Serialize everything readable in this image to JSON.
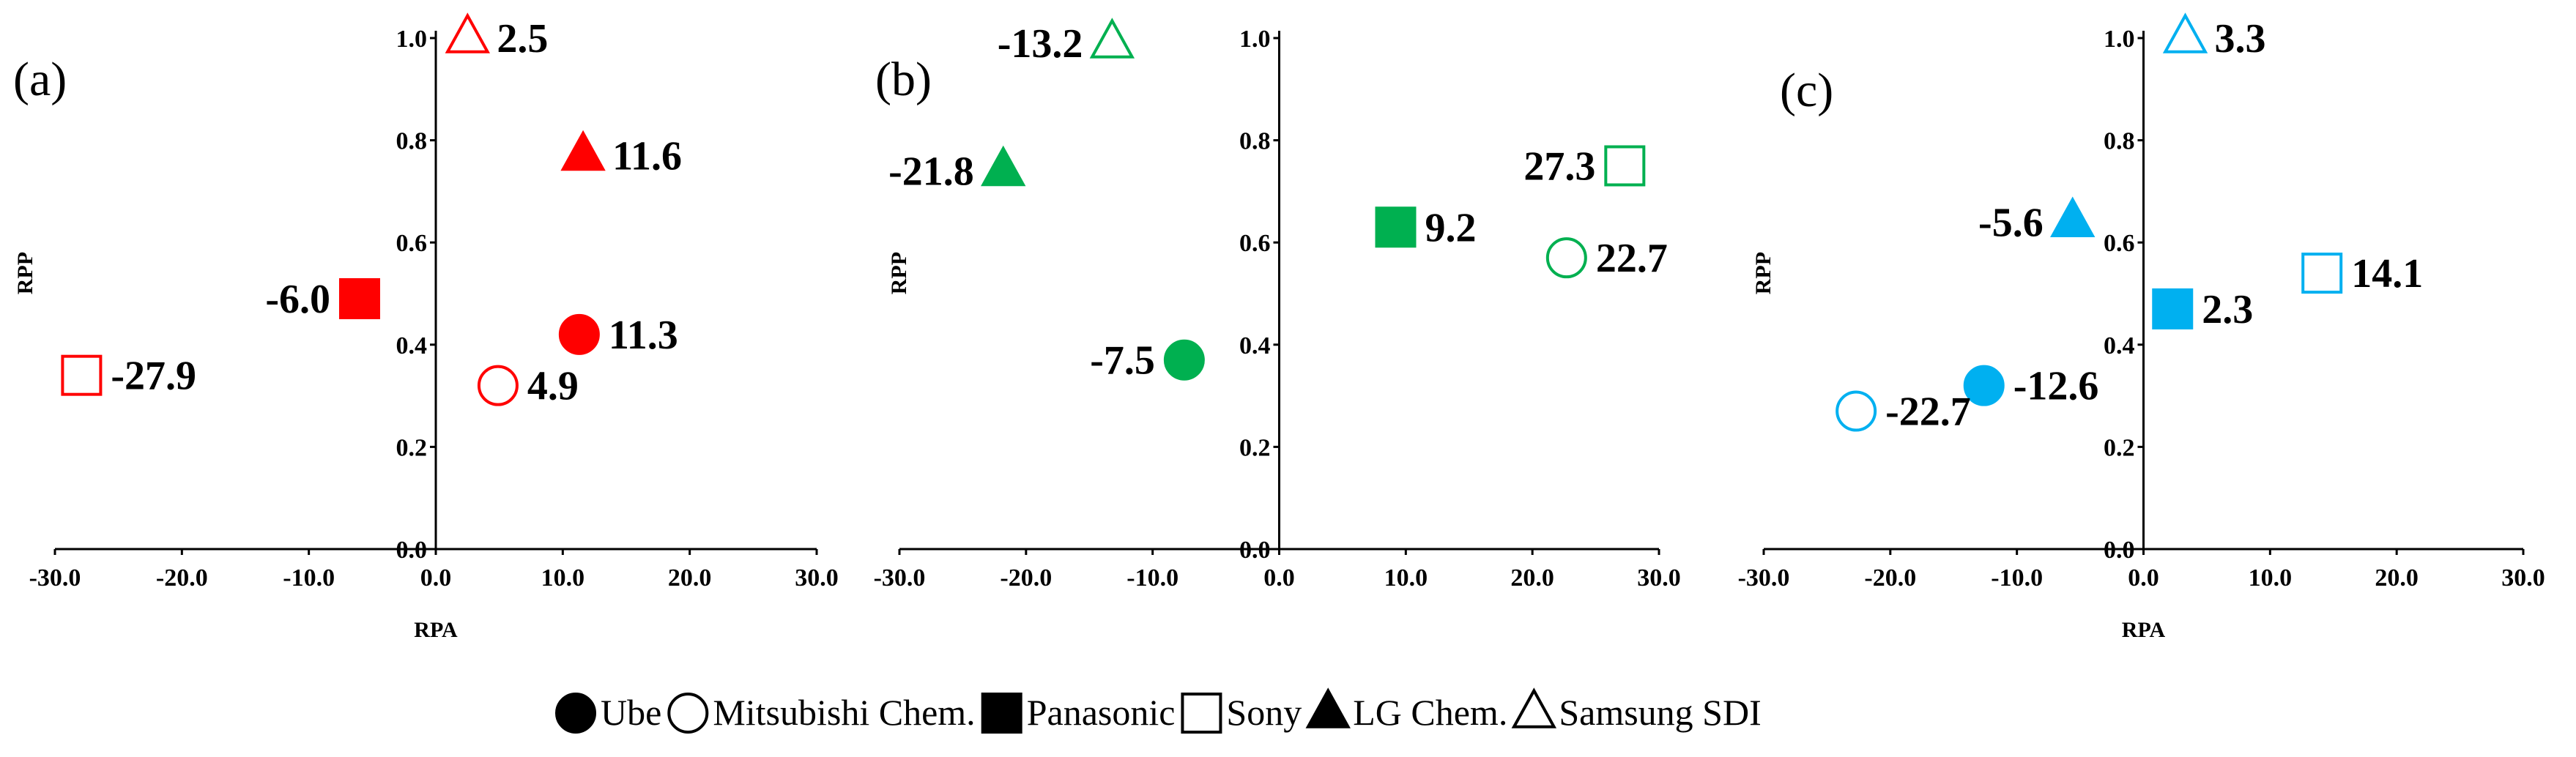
{
  "chart_data": [
    {
      "type": "scatter",
      "panel_label": "(a)",
      "color": "#ff0000",
      "xlabel": "RPA",
      "ylabel": "RPP",
      "xlim": [
        -30.0,
        30.0
      ],
      "ylim": [
        0.0,
        1.0
      ],
      "x_ticks": [
        "-30.0",
        "-20.0",
        "-10.0",
        "0.0",
        "10.0",
        "20.0",
        "30.0"
      ],
      "y_ticks": [
        "0.0",
        "0.2",
        "0.4",
        "0.6",
        "0.8",
        "1.0"
      ],
      "points": [
        {
          "series": "Ube",
          "x": 11.3,
          "y": 0.42,
          "label": "11.3",
          "label_side": "right"
        },
        {
          "series": "Mitsubishi Chem.",
          "x": 4.9,
          "y": 0.32,
          "label": "4.9",
          "label_side": "right"
        },
        {
          "series": "Panasonic",
          "x": -6.0,
          "y": 0.49,
          "label": "-6.0",
          "label_side": "left"
        },
        {
          "series": "Sony",
          "x": -27.9,
          "y": 0.34,
          "label": "-27.9",
          "label_side": "right"
        },
        {
          "series": "LG Chem.",
          "x": 11.6,
          "y": 0.77,
          "label": "11.6",
          "label_side": "right"
        },
        {
          "series": "Samsung SDI",
          "x": 2.5,
          "y": 1.0,
          "label": "2.5",
          "label_side": "right"
        }
      ]
    },
    {
      "type": "scatter",
      "panel_label": "(b)",
      "color": "#00b050",
      "xlabel": "",
      "ylabel": "RPP",
      "xlim": [
        -30.0,
        30.0
      ],
      "ylim": [
        0.0,
        1.0
      ],
      "x_ticks": [
        "-30.0",
        "-20.0",
        "-10.0",
        "0.0",
        "10.0",
        "20.0",
        "30.0"
      ],
      "y_ticks": [
        "0.0",
        "0.2",
        "0.4",
        "0.6",
        "0.8",
        "1.0"
      ],
      "points": [
        {
          "series": "Ube",
          "x": -7.5,
          "y": 0.37,
          "label": "-7.5",
          "label_side": "left"
        },
        {
          "series": "Mitsubishi Chem.",
          "x": 22.7,
          "y": 0.57,
          "label": "22.7",
          "label_side": "right"
        },
        {
          "series": "Panasonic",
          "x": 9.2,
          "y": 0.63,
          "label": "9.2",
          "label_side": "right"
        },
        {
          "series": "Sony",
          "x": 27.3,
          "y": 0.75,
          "label": "27.3",
          "label_side": "left"
        },
        {
          "series": "LG Chem.",
          "x": -21.8,
          "y": 0.74,
          "label": "-21.8",
          "label_side": "left"
        },
        {
          "series": "Samsung SDI",
          "x": -13.2,
          "y": 0.99,
          "label": "-13.2",
          "label_side": "left"
        }
      ]
    },
    {
      "type": "scatter",
      "panel_label": "(c)",
      "color": "#00b0f0",
      "xlabel": "RPA",
      "ylabel": "RPP",
      "xlim": [
        -30.0,
        30.0
      ],
      "ylim": [
        0.0,
        1.0
      ],
      "x_ticks": [
        "-30.0",
        "-20.0",
        "-10.0",
        "0.0",
        "10.0",
        "20.0",
        "30.0"
      ],
      "y_ticks": [
        "0.0",
        "0.2",
        "0.4",
        "0.6",
        "0.8",
        "1.0"
      ],
      "points": [
        {
          "series": "Ube",
          "x": -12.6,
          "y": 0.32,
          "label": "-12.6",
          "label_side": "right"
        },
        {
          "series": "Mitsubishi Chem.",
          "x": -22.7,
          "y": 0.27,
          "label": "-22.7",
          "label_side": "right"
        },
        {
          "series": "Panasonic",
          "x": 2.3,
          "y": 0.47,
          "label": "2.3",
          "label_side": "right"
        },
        {
          "series": "Sony",
          "x": 14.1,
          "y": 0.54,
          "label": "14.1",
          "label_side": "right"
        },
        {
          "series": "LG Chem.",
          "x": -5.6,
          "y": 0.64,
          "label": "-5.6",
          "label_side": "left"
        },
        {
          "series": "Samsung SDI",
          "x": 3.3,
          "y": 1.0,
          "label": "3.3",
          "label_side": "right"
        }
      ]
    }
  ],
  "legend": {
    "placement": "bottom-center",
    "items": [
      {
        "name": "Ube",
        "marker": "filled-circle"
      },
      {
        "name": "Mitsubishi Chem.",
        "marker": "open-circle"
      },
      {
        "name": "Panasonic",
        "marker": "filled-square"
      },
      {
        "name": "Sony",
        "marker": "open-square"
      },
      {
        "name": "LG Chem.",
        "marker": "filled-triangle"
      },
      {
        "name": "Samsung SDI",
        "marker": "open-triangle"
      }
    ]
  }
}
